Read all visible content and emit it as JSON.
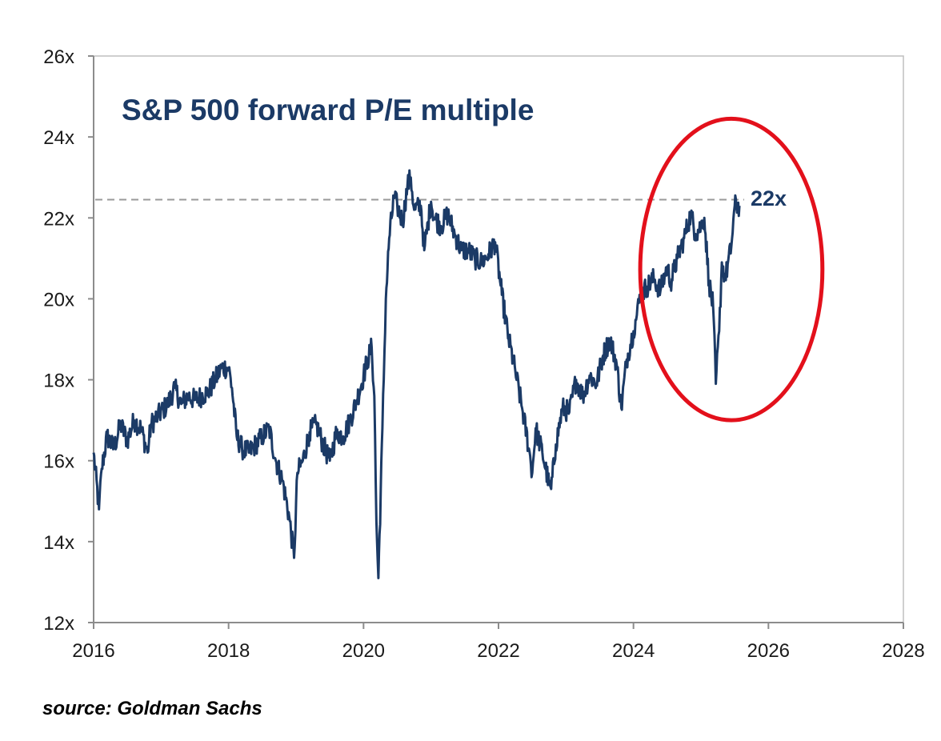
{
  "chart_data": {
    "type": "line",
    "title": "S&P 500 forward P/E multiple",
    "xlabel": "",
    "ylabel": "",
    "xlim": [
      2016,
      2028
    ],
    "ylim": [
      12,
      26
    ],
    "x_ticks": [
      "2016",
      "2018",
      "2020",
      "2022",
      "2024",
      "2026",
      "2028"
    ],
    "y_ticks": [
      "12x",
      "14x",
      "16x",
      "18x",
      "20x",
      "22x",
      "24x",
      "26x"
    ],
    "grid": false,
    "reference_line": {
      "value": 22.45,
      "style": "dashed",
      "color": "#9a9a9a"
    },
    "end_label": "22x",
    "highlight": {
      "shape": "ellipse",
      "color": "#e3101b",
      "x_range": [
        2024.1,
        2026.8
      ],
      "y_range": [
        17.0,
        24.45
      ]
    },
    "series": [
      {
        "color": "#1b3a66",
        "x": [
          2016.0,
          2016.08,
          2016.12,
          2016.2,
          2016.3,
          2016.4,
          2016.5,
          2016.6,
          2016.7,
          2016.8,
          2016.85,
          2016.95,
          2017.1,
          2017.2,
          2017.3,
          2017.4,
          2017.5,
          2017.6,
          2017.7,
          2017.8,
          2017.9,
          2018.0,
          2018.05,
          2018.12,
          2018.2,
          2018.3,
          2018.4,
          2018.5,
          2018.6,
          2018.7,
          2018.8,
          2018.9,
          2018.97,
          2019.02,
          2019.1,
          2019.2,
          2019.3,
          2019.4,
          2019.5,
          2019.6,
          2019.7,
          2019.8,
          2019.9,
          2020.0,
          2020.06,
          2020.12,
          2020.16,
          2020.19,
          2020.22,
          2020.28,
          2020.33,
          2020.38,
          2020.45,
          2020.5,
          2020.58,
          2020.65,
          2020.7,
          2020.75,
          2020.85,
          2020.9,
          2021.0,
          2021.05,
          2021.15,
          2021.25,
          2021.35,
          2021.45,
          2021.55,
          2021.65,
          2021.75,
          2021.85,
          2021.95,
          2022.05,
          2022.15,
          2022.25,
          2022.35,
          2022.45,
          2022.5,
          2022.55,
          2022.65,
          2022.75,
          2022.78,
          2022.85,
          2022.95,
          2023.05,
          2023.15,
          2023.25,
          2023.35,
          2023.45,
          2023.55,
          2023.65,
          2023.75,
          2023.82,
          2023.9,
          2024.0,
          2024.05,
          2024.1,
          2024.2,
          2024.3,
          2024.4,
          2024.5,
          2024.55,
          2024.65,
          2024.75,
          2024.85,
          2024.92,
          2025.0,
          2025.05,
          2025.12,
          2025.18,
          2025.22,
          2025.27,
          2025.31,
          2025.36,
          2025.45,
          2025.5,
          2025.57
        ],
        "y": [
          16.2,
          14.8,
          15.8,
          16.6,
          16.3,
          16.9,
          16.5,
          17.0,
          16.8,
          16.2,
          16.9,
          17.1,
          17.4,
          17.8,
          17.4,
          17.6,
          17.5,
          17.6,
          17.7,
          18.0,
          18.3,
          18.3,
          17.8,
          16.6,
          16.3,
          16.2,
          16.4,
          16.6,
          16.8,
          16.0,
          15.5,
          14.6,
          13.6,
          15.7,
          16.0,
          16.7,
          16.9,
          16.4,
          16.0,
          16.7,
          16.6,
          17.0,
          17.5,
          18.1,
          18.5,
          18.8,
          17.6,
          14.5,
          13.1,
          16.8,
          20.0,
          21.5,
          22.5,
          22.3,
          21.9,
          22.8,
          23.0,
          22.2,
          22.3,
          21.2,
          22.4,
          22.0,
          21.8,
          22.1,
          21.6,
          21.2,
          21.2,
          21.0,
          20.9,
          21.1,
          21.4,
          20.1,
          19.0,
          18.2,
          17.3,
          16.3,
          15.7,
          16.8,
          16.2,
          15.4,
          15.3,
          16.4,
          17.3,
          17.2,
          18.0,
          17.6,
          18.1,
          17.9,
          18.6,
          19.0,
          18.4,
          17.3,
          18.5,
          19.2,
          19.6,
          20.1,
          20.3,
          20.5,
          20.2,
          20.8,
          20.4,
          21.0,
          21.5,
          22.1,
          21.6,
          21.8,
          22.0,
          20.4,
          19.8,
          17.9,
          19.2,
          20.9,
          20.5,
          21.3,
          22.3,
          22.3
        ]
      }
    ]
  },
  "source_text": "source: Goldman Sachs"
}
